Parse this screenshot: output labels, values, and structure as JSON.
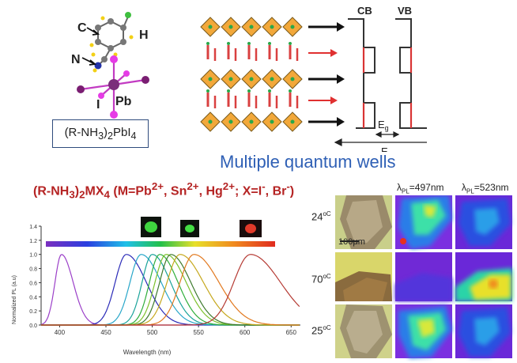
{
  "structure": {
    "atom_labels": {
      "c": "C",
      "h": "H",
      "n": "N",
      "i": "I",
      "pb": "Pb"
    }
  },
  "formula_box": {
    "text_pre": "(R-NH",
    "sub1": "3",
    "text_mid": ")",
    "sub2": "2",
    "text_post": "PbI",
    "sub3": "4"
  },
  "band_diagram": {
    "cb": "CB",
    "vb": "VB",
    "eg": "E",
    "eg_sub": "g",
    "e": "E"
  },
  "mqw_title": "Multiple quantum wells",
  "series_title": {
    "p1": "(R-NH",
    "s1": "3",
    "p2": ")",
    "s2": "2",
    "p3": "MX",
    "s3": "4",
    "p4": " (M=Pb",
    "sup1": "2+",
    "p5": ", Sn",
    "sup2": "2+",
    "p6": ", Hg",
    "sup3": "2+",
    "p7": "; X=I",
    "sup4": "-",
    "p8": ", Br",
    "sup5": "-",
    "p9": ")"
  },
  "chart_data": {
    "type": "line",
    "xlabel": "Wavelength (nm)",
    "ylabel": "Normalized PL (a.u)",
    "xlim": [
      380,
      660
    ],
    "ylim": [
      0,
      1.4
    ],
    "x_ticks": [
      400,
      450,
      500,
      550,
      600,
      650
    ],
    "y_ticks": [
      0.0,
      0.2,
      0.4,
      0.6,
      0.8,
      1.0,
      1.2,
      1.4
    ],
    "series": [
      {
        "peak": 402,
        "width": 7,
        "color": "#9b3fc8"
      },
      {
        "peak": 472,
        "width": 12,
        "color": "#2b2bb8"
      },
      {
        "peak": 488,
        "width": 12,
        "color": "#27a6c9"
      },
      {
        "peak": 500,
        "width": 11,
        "color": "#1aa39a"
      },
      {
        "peak": 508,
        "width": 11,
        "color": "#2fae3b"
      },
      {
        "peak": 515,
        "width": 12,
        "color": "#7cc12b"
      },
      {
        "peak": 520,
        "width": 12,
        "color": "#3d7a2d"
      },
      {
        "peak": 530,
        "width": 14,
        "color": "#c6a81e"
      },
      {
        "peak": 545,
        "width": 15,
        "color": "#e27a21"
      },
      {
        "peak": 606,
        "width": 18,
        "color": "#b53a33"
      }
    ]
  },
  "pl_maps": {
    "headers": [
      {
        "lambda": "λ",
        "sub": "PL",
        "value": "=497nm"
      },
      {
        "lambda": "λ",
        "sub": "PL",
        "value": "=523nm"
      }
    ],
    "scale_bar": "100μm",
    "temperatures": [
      {
        "value": "24",
        "unit": "oC"
      },
      {
        "value": "70",
        "unit": "oC"
      },
      {
        "value": "25",
        "unit": "oC"
      }
    ]
  }
}
